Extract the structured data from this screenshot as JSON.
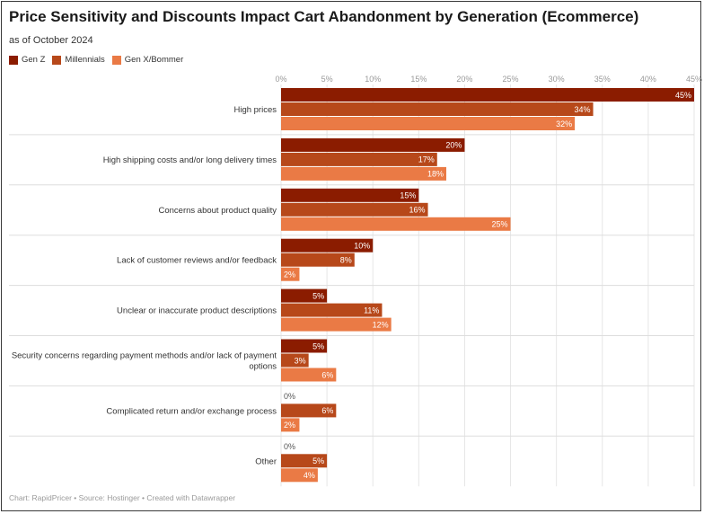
{
  "chart_data": {
    "type": "bar",
    "orientation": "horizontal",
    "title": "Price Sensitivity and Discounts Impact Cart Abandonment by Generation (Ecommerce)",
    "subtitle": "as of October 2024",
    "categories": [
      "High prices",
      "High shipping costs and/or long delivery times",
      "Concerns about product quality",
      "Lack of customer reviews and/or feedback",
      "Unclear or inaccurate product descriptions",
      [
        "Security concerns regarding payment methods and/or lack of payment",
        "options"
      ],
      "Complicated return and/or exchange process",
      "Other"
    ],
    "series": [
      {
        "name": "Gen Z",
        "color": "#8b1c00",
        "values": [
          45,
          20,
          15,
          10,
          5,
          5,
          0,
          0
        ]
      },
      {
        "name": "Millennials",
        "color": "#b7481a",
        "values": [
          34,
          17,
          16,
          8,
          11,
          3,
          6,
          5
        ]
      },
      {
        "name": "Gen X/Bommer",
        "color": "#ea7a45",
        "values": [
          32,
          18,
          25,
          2,
          12,
          6,
          2,
          4
        ]
      }
    ],
    "xlim": [
      0,
      45
    ],
    "xticks": [
      "0%",
      "5%",
      "10%",
      "15%",
      "20%",
      "25%",
      "30%",
      "35%",
      "40%",
      "45%"
    ],
    "value_suffix": "%",
    "legend_position": "top-left",
    "grid": true
  },
  "footer": "Chart: RapidPricer • Source: Hostinger • Created with Datawrapper"
}
